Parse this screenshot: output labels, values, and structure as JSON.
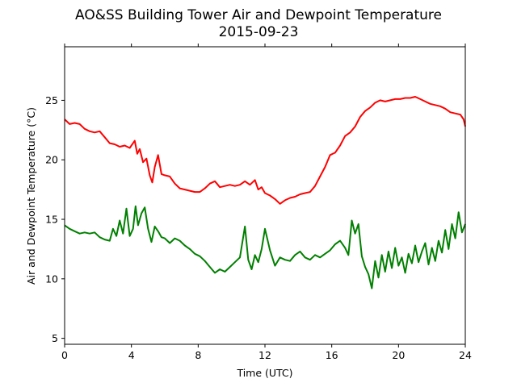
{
  "chart_data": {
    "type": "line",
    "title": "AO&SS Building Tower Air and Dewpoint Temperature",
    "subtitle": "2015-09-23",
    "xlabel": "Time (UTC)",
    "ylabel": "Air and Dewpoint Temperature (°C)",
    "xlim": [
      0,
      24
    ],
    "ylim": [
      4.5,
      29.5
    ],
    "x_ticks": [
      0,
      4,
      8,
      12,
      16,
      20,
      24
    ],
    "x_tick_labels": [
      "0",
      "4",
      "8",
      "12",
      "16",
      "20",
      "24"
    ],
    "y_ticks": [
      5,
      10,
      15,
      20,
      25
    ],
    "y_tick_labels": [
      "5",
      "10",
      "15",
      "20",
      "25"
    ],
    "grid": false,
    "series": [
      {
        "color": "#ff0000",
        "x": [
          0,
          0.3,
          0.6,
          0.9,
          1.2,
          1.5,
          1.8,
          2.1,
          2.4,
          2.7,
          3.0,
          3.3,
          3.6,
          3.9,
          4.2,
          4.35,
          4.5,
          4.7,
          4.9,
          5.1,
          5.25,
          5.4,
          5.6,
          5.8,
          6.0,
          6.3,
          6.6,
          6.9,
          7.2,
          7.5,
          7.8,
          8.1,
          8.4,
          8.7,
          9.0,
          9.3,
          9.6,
          9.9,
          10.2,
          10.5,
          10.8,
          11.1,
          11.4,
          11.6,
          11.8,
          12.0,
          12.3,
          12.6,
          12.9,
          13.2,
          13.5,
          13.8,
          14.1,
          14.4,
          14.7,
          15.0,
          15.3,
          15.6,
          15.9,
          16.2,
          16.5,
          16.8,
          17.1,
          17.4,
          17.7,
          18.0,
          18.3,
          18.6,
          18.9,
          19.2,
          19.5,
          19.8,
          20.1,
          20.4,
          20.7,
          21.0,
          21.3,
          21.6,
          21.9,
          22.2,
          22.5,
          22.8,
          23.1,
          23.4,
          23.7,
          23.9,
          24.0
        ],
        "y": [
          23.4,
          23.0,
          23.1,
          23.0,
          22.6,
          22.4,
          22.3,
          22.4,
          21.9,
          21.4,
          21.3,
          21.1,
          21.2,
          21.0,
          21.6,
          20.5,
          20.9,
          19.8,
          20.1,
          18.7,
          18.1,
          19.4,
          20.4,
          18.8,
          18.7,
          18.6,
          18.0,
          17.6,
          17.5,
          17.4,
          17.3,
          17.3,
          17.6,
          18.0,
          18.2,
          17.7,
          17.8,
          17.9,
          17.8,
          17.9,
          18.2,
          17.9,
          18.3,
          17.5,
          17.7,
          17.2,
          17.0,
          16.7,
          16.3,
          16.6,
          16.8,
          16.9,
          17.1,
          17.2,
          17.3,
          17.8,
          18.6,
          19.4,
          20.4,
          20.6,
          21.2,
          22.0,
          22.3,
          22.8,
          23.6,
          24.1,
          24.4,
          24.8,
          25.0,
          24.9,
          25.0,
          25.1,
          25.1,
          25.2,
          25.2,
          25.3,
          25.1,
          24.9,
          24.7,
          24.6,
          24.5,
          24.3,
          24.0,
          23.9,
          23.8,
          23.4,
          22.8
        ]
      },
      {
        "color": "#008000",
        "x": [
          0,
          0.3,
          0.6,
          0.9,
          1.2,
          1.5,
          1.8,
          2.1,
          2.4,
          2.7,
          2.9,
          3.1,
          3.3,
          3.5,
          3.7,
          3.9,
          4.1,
          4.25,
          4.4,
          4.6,
          4.8,
          5.0,
          5.2,
          5.4,
          5.6,
          5.8,
          6.0,
          6.3,
          6.6,
          6.9,
          7.2,
          7.5,
          7.8,
          8.1,
          8.4,
          8.7,
          9.0,
          9.3,
          9.6,
          9.9,
          10.2,
          10.5,
          10.8,
          11.0,
          11.2,
          11.4,
          11.6,
          11.8,
          12.0,
          12.3,
          12.6,
          12.9,
          13.2,
          13.5,
          13.8,
          14.1,
          14.4,
          14.7,
          15.0,
          15.3,
          15.6,
          15.9,
          16.2,
          16.5,
          16.8,
          17.0,
          17.2,
          17.4,
          17.6,
          17.8,
          18.0,
          18.2,
          18.4,
          18.6,
          18.8,
          19.0,
          19.2,
          19.4,
          19.6,
          19.8,
          20.0,
          20.2,
          20.4,
          20.6,
          20.8,
          21.0,
          21.2,
          21.4,
          21.6,
          21.8,
          22.0,
          22.2,
          22.4,
          22.6,
          22.8,
          23.0,
          23.2,
          23.4,
          23.6,
          23.8,
          24.0
        ],
        "y": [
          14.5,
          14.2,
          14.0,
          13.8,
          13.9,
          13.8,
          13.9,
          13.5,
          13.3,
          13.2,
          14.2,
          13.6,
          14.9,
          13.8,
          15.9,
          13.6,
          14.2,
          16.1,
          14.5,
          15.5,
          16.0,
          14.2,
          13.1,
          14.4,
          14.0,
          13.5,
          13.4,
          13.0,
          13.4,
          13.2,
          12.8,
          12.5,
          12.1,
          11.9,
          11.5,
          11.0,
          10.5,
          10.8,
          10.6,
          11.0,
          11.4,
          11.8,
          14.4,
          11.6,
          10.8,
          12.0,
          11.4,
          12.5,
          14.2,
          12.4,
          11.1,
          11.8,
          11.6,
          11.5,
          12.0,
          12.3,
          11.8,
          11.6,
          12.0,
          11.8,
          12.1,
          12.4,
          12.9,
          13.2,
          12.6,
          12.0,
          14.9,
          13.8,
          14.6,
          11.9,
          11.0,
          10.4,
          9.2,
          11.5,
          10.1,
          12.0,
          10.6,
          12.3,
          10.9,
          12.6,
          11.1,
          11.8,
          10.5,
          12.1,
          11.3,
          12.8,
          11.4,
          12.3,
          13.0,
          11.2,
          12.6,
          11.5,
          13.2,
          12.2,
          14.1,
          12.5,
          14.6,
          13.4,
          15.6,
          13.9,
          14.6
        ]
      }
    ]
  }
}
